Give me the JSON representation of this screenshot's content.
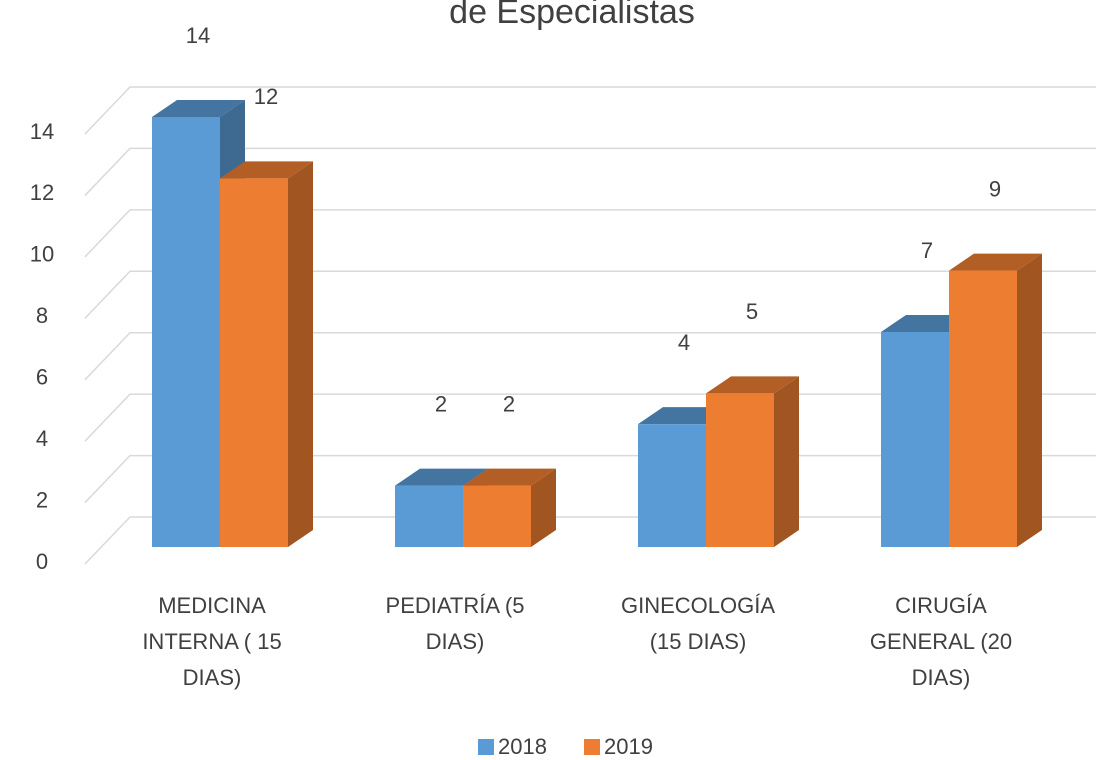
{
  "chart_data": {
    "type": "bar3d",
    "title": "de Especialistas",
    "categories": [
      "MEDICINA INTERNA   ( 15 DIAS)",
      "PEDIATRÍA  (5 DIAS)",
      "GINECOLOGÍA (15 DIAS)",
      "CIRUGÍA GENERAL (20 DIAS)"
    ],
    "series": [
      {
        "name": "2018",
        "color": "#5b9bd5",
        "values": [
          14,
          2,
          4,
          7
        ]
      },
      {
        "name": "2019",
        "color": "#ed7d31",
        "values": [
          12,
          2,
          5,
          9
        ]
      }
    ],
    "ylim": [
      0,
      14
    ],
    "yticks": [
      0,
      2,
      4,
      6,
      8,
      10,
      12,
      14
    ],
    "grid": true,
    "legend": "bottom"
  }
}
